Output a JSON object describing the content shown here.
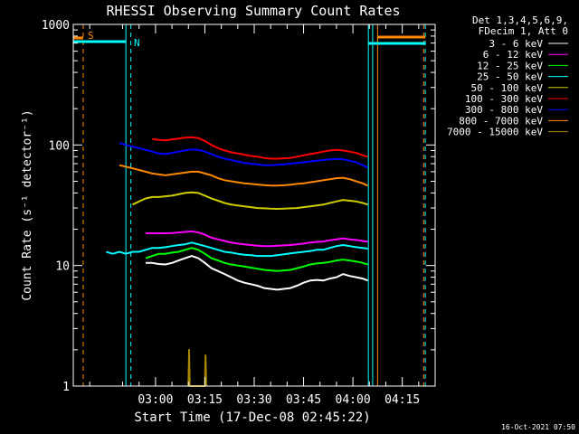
{
  "chart_data": {
    "type": "line",
    "title": "RHESSI Observing Summary Count Rates",
    "xlabel": "Start Time (17-Dec-08 02:45:22)",
    "ylabel": "Count Rate (s⁻¹ detector⁻¹)",
    "yscale": "log",
    "ylim": [
      1,
      1000
    ],
    "xlim_minutes": [
      -10,
      100
    ],
    "x_ticks": [
      {
        "t": 15,
        "label": "03:00"
      },
      {
        "t": 30,
        "label": "03:15"
      },
      {
        "t": 45,
        "label": "03:30"
      },
      {
        "t": 60,
        "label": "03:45"
      },
      {
        "t": 75,
        "label": "04:00"
      },
      {
        "t": 90,
        "label": "04:15"
      }
    ],
    "y_ticks": [
      {
        "v": 1,
        "label": "1"
      },
      {
        "v": 10,
        "label": "10"
      },
      {
        "v": 100,
        "label": "100"
      },
      {
        "v": 1000,
        "label": "1000"
      }
    ],
    "legend_header": [
      "Det 1,3,4,5,6,9,",
      "FDecim 1, Att 0"
    ],
    "legend_position": "right",
    "series": [
      {
        "name": "3 - 6 keV",
        "color": "#ffffff",
        "x": [
          12,
          14,
          16,
          18,
          20,
          22,
          24,
          26,
          28,
          30,
          32,
          34,
          36,
          38,
          40,
          42,
          44,
          46,
          48,
          50,
          52,
          54,
          56,
          58,
          60,
          62,
          64,
          66,
          68,
          70,
          72,
          74,
          76,
          78,
          79.5
        ],
        "values": [
          10.5,
          10.5,
          10.3,
          10.2,
          10.5,
          11,
          11.5,
          12,
          11.5,
          10.5,
          9.5,
          9,
          8.5,
          8,
          7.5,
          7.2,
          7,
          6.8,
          6.5,
          6.4,
          6.3,
          6.4,
          6.5,
          6.8,
          7.2,
          7.5,
          7.6,
          7.5,
          7.8,
          8,
          8.5,
          8.2,
          8,
          7.8,
          7.5
        ]
      },
      {
        "name": "6 - 12 keV",
        "color": "#ff00ff",
        "x": [
          12,
          14,
          16,
          18,
          20,
          22,
          24,
          26,
          28,
          30,
          32,
          34,
          36,
          38,
          40,
          42,
          44,
          46,
          48,
          50,
          52,
          54,
          56,
          58,
          60,
          62,
          64,
          66,
          68,
          70,
          72,
          74,
          76,
          78,
          79.5
        ],
        "values": [
          18.5,
          18.5,
          18.5,
          18.5,
          18.6,
          18.8,
          19,
          19.2,
          18.8,
          18,
          17,
          16.5,
          16,
          15.5,
          15.2,
          15,
          14.8,
          14.6,
          14.5,
          14.5,
          14.6,
          14.7,
          14.8,
          15,
          15.2,
          15.5,
          15.7,
          15.8,
          16.2,
          16.5,
          16.8,
          16.5,
          16.3,
          16,
          15.8
        ]
      },
      {
        "name": "12 - 25 keV",
        "color": "#00ff00",
        "x": [
          12,
          14,
          16,
          18,
          20,
          22,
          24,
          26,
          28,
          30,
          32,
          34,
          36,
          38,
          40,
          42,
          44,
          46,
          48,
          50,
          52,
          54,
          56,
          58,
          60,
          62,
          64,
          66,
          68,
          70,
          72,
          74,
          76,
          78,
          79.5
        ],
        "values": [
          11.5,
          12,
          12.5,
          12.5,
          12.8,
          13,
          13.5,
          14,
          13.5,
          12.5,
          11.5,
          11,
          10.5,
          10.2,
          10,
          9.8,
          9.6,
          9.4,
          9.2,
          9.1,
          9,
          9.1,
          9.2,
          9.5,
          9.8,
          10.2,
          10.4,
          10.5,
          10.7,
          11,
          11.2,
          11,
          10.8,
          10.5,
          10.2
        ]
      },
      {
        "name": "25 - 50 keV",
        "color": "#00ffff",
        "x": [
          0,
          2,
          4,
          6,
          8,
          10,
          12,
          14,
          16,
          18,
          20,
          22,
          24,
          26,
          28,
          30,
          32,
          34,
          36,
          38,
          40,
          42,
          44,
          46,
          48,
          50,
          52,
          54,
          56,
          58,
          60,
          62,
          64,
          66,
          68,
          70,
          72,
          74,
          76,
          78,
          79.5
        ],
        "values": [
          13,
          12.5,
          13,
          12.5,
          13,
          13,
          13.5,
          14,
          14,
          14.2,
          14.5,
          14.8,
          15,
          15.5,
          15,
          14.5,
          14,
          13.5,
          13,
          12.8,
          12.5,
          12.3,
          12.2,
          12,
          12,
          12,
          12.2,
          12.4,
          12.6,
          12.8,
          13,
          13.2,
          13.5,
          13.5,
          14,
          14.5,
          14.8,
          14.5,
          14.2,
          14,
          13.8
        ]
      },
      {
        "name": "50 - 100 keV",
        "color": "#cccc00",
        "x": [
          8,
          10,
          12,
          14,
          16,
          18,
          20,
          22,
          24,
          26,
          28,
          30,
          32,
          34,
          36,
          38,
          40,
          42,
          44,
          46,
          48,
          50,
          52,
          54,
          56,
          58,
          60,
          62,
          64,
          66,
          68,
          70,
          72,
          74,
          76,
          78,
          79.5
        ],
        "values": [
          32,
          34,
          36,
          37,
          37,
          37.5,
          38,
          39,
          40,
          40.5,
          40,
          38,
          36,
          34.5,
          33,
          32,
          31.5,
          31,
          30.5,
          30,
          29.8,
          29.6,
          29.5,
          29.6,
          29.8,
          30,
          30.5,
          31,
          31.5,
          32,
          33,
          34,
          35,
          34.5,
          34,
          33,
          32
        ]
      },
      {
        "name": "100 - 300 keV",
        "color": "#ff0000",
        "x": [
          14,
          16,
          18,
          20,
          22,
          24,
          26,
          28,
          30,
          32,
          34,
          36,
          38,
          40,
          42,
          44,
          46,
          48,
          50,
          52,
          54,
          56,
          58,
          60,
          62,
          64,
          66,
          68,
          70,
          72,
          74,
          76,
          78,
          79.5
        ],
        "values": [
          112,
          110,
          109,
          111,
          113,
          115,
          116,
          114,
          108,
          100,
          94,
          90,
          87,
          85,
          83,
          81,
          80,
          78,
          77,
          77,
          77.5,
          78,
          80,
          82,
          84,
          86,
          88,
          90,
          91,
          90,
          88,
          86,
          82,
          80
        ]
      },
      {
        "name": "300 - 800 keV",
        "color": "#0000ff",
        "x": [
          4,
          6,
          8,
          10,
          12,
          14,
          16,
          18,
          20,
          22,
          24,
          26,
          28,
          30,
          32,
          34,
          36,
          38,
          40,
          42,
          44,
          46,
          48,
          50,
          52,
          54,
          56,
          58,
          60,
          62,
          64,
          66,
          68,
          70,
          72,
          74,
          76,
          78,
          79.5
        ],
        "values": [
          104,
          100,
          97,
          94,
          91,
          88,
          85,
          84,
          86,
          88,
          90,
          92,
          91,
          88,
          84,
          80,
          77,
          75,
          73,
          71,
          70,
          69,
          68,
          68,
          68.5,
          69,
          70,
          71,
          72,
          73,
          74,
          75,
          76,
          76.5,
          76,
          74,
          72,
          68,
          65
        ]
      },
      {
        "name": "800 - 7000 keV",
        "color": "#ff8800",
        "x": [
          4,
          6,
          8,
          10,
          12,
          14,
          16,
          18,
          20,
          22,
          24,
          26,
          28,
          30,
          32,
          34,
          36,
          38,
          40,
          42,
          44,
          46,
          48,
          50,
          52,
          54,
          56,
          58,
          60,
          62,
          64,
          66,
          68,
          70,
          72,
          74,
          76,
          78,
          79.5
        ],
        "values": [
          68,
          66,
          64,
          62,
          60,
          58,
          57,
          56,
          57,
          58,
          59,
          60,
          60,
          58,
          56,
          53,
          51,
          50,
          49,
          48,
          47.5,
          47,
          46.5,
          46,
          46,
          46.3,
          46.8,
          47.5,
          48,
          49,
          50,
          51,
          52,
          53,
          53.5,
          52,
          50,
          48,
          46
        ]
      },
      {
        "name": "7000 - 15000 keV",
        "color": "#aa8800",
        "x": [
          25,
          25.2,
          25.4,
          30,
          30.2,
          30.4
        ],
        "values": [
          1,
          2,
          1,
          1,
          1.8,
          1
        ]
      }
    ]
  },
  "annotations": {
    "s_label": "S",
    "n_label": "N",
    "timestamp": "16-Oct-2021 07:50"
  },
  "colors": {
    "attenuator": "#ff8800",
    "saa_night": "#00ffff",
    "axes": "#ffffff"
  }
}
